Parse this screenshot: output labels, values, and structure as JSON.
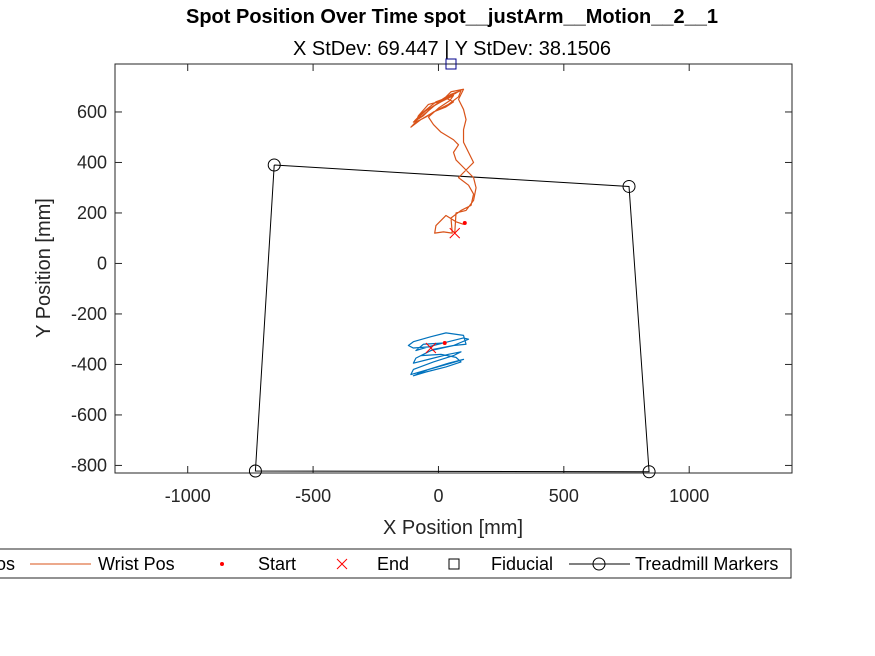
{
  "chart_data": {
    "type": "line",
    "title": "Spot Position Over Time spot__justArm__Motion__2__1",
    "subtitle": "X StDev: 69.447  |  Y StDev: 38.1506",
    "xlabel": "X Position [mm]",
    "ylabel": "Y Position [mm]",
    "xlim": [
      -1290,
      1410
    ],
    "ylim": [
      -830,
      790
    ],
    "xticks": [
      -1000,
      -500,
      0,
      500,
      1000
    ],
    "xtick_labels": [
      "-1000",
      "-500",
      "0",
      "500",
      "1000"
    ],
    "yticks": [
      -800,
      -600,
      -400,
      -200,
      0,
      200,
      400,
      600
    ],
    "ytick_labels": [
      "-800",
      "-600",
      "-400",
      "-200",
      "0",
      "200",
      "400",
      "600"
    ],
    "grid": false,
    "legend_position": "bottom",
    "colors": {
      "spot": "#0072BD",
      "wrist": "#D95319",
      "markers": "#000000",
      "start_end": "#FF0000",
      "fiducial": "#00008B"
    },
    "series": [
      {
        "name": "Spot Pos",
        "legend_text": "os",
        "color": "#0072BD",
        "points": [
          [
            20,
            -315
          ],
          [
            -60,
            -320
          ],
          [
            -90,
            -345
          ],
          [
            -40,
            -330
          ],
          [
            40,
            -310
          ],
          [
            100,
            -295
          ],
          [
            120,
            -300
          ],
          [
            60,
            -325
          ],
          [
            -20,
            -340
          ],
          [
            -90,
            -375
          ],
          [
            -100,
            -395
          ],
          [
            -40,
            -380
          ],
          [
            40,
            -360
          ],
          [
            90,
            -350
          ],
          [
            60,
            -365
          ],
          [
            -20,
            -390
          ],
          [
            -100,
            -420
          ],
          [
            -110,
            -440
          ],
          [
            -40,
            -420
          ],
          [
            50,
            -395
          ],
          [
            100,
            -380
          ],
          [
            40,
            -395
          ],
          [
            -40,
            -420
          ],
          [
            -100,
            -445
          ],
          [
            -50,
            -430
          ],
          [
            30,
            -410
          ],
          [
            90,
            -390
          ],
          [
            70,
            -372
          ],
          [
            10,
            -360
          ],
          [
            -70,
            -365
          ],
          [
            -30,
            -345
          ],
          [
            60,
            -325
          ],
          [
            110,
            -320
          ],
          [
            100,
            -285
          ],
          [
            30,
            -275
          ],
          [
            -30,
            -290
          ],
          [
            -100,
            -310
          ],
          [
            -120,
            -325
          ],
          [
            -100,
            -335
          ],
          [
            -30,
            -330
          ],
          [
            -30,
            -335
          ]
        ]
      },
      {
        "name": "Wrist Pos",
        "color": "#D95319",
        "points": [
          [
            100,
            155
          ],
          [
            70,
            165
          ],
          [
            30,
            190
          ],
          [
            -10,
            150
          ],
          [
            -15,
            120
          ],
          [
            20,
            125
          ],
          [
            55,
            120
          ],
          [
            50,
            180
          ],
          [
            90,
            210
          ],
          [
            130,
            230
          ],
          [
            140,
            275
          ],
          [
            120,
            310
          ],
          [
            80,
            340
          ],
          [
            120,
            380
          ],
          [
            140,
            400
          ],
          [
            120,
            440
          ],
          [
            100,
            480
          ],
          [
            100,
            530
          ],
          [
            110,
            570
          ],
          [
            100,
            610
          ],
          [
            80,
            650
          ],
          [
            100,
            690
          ],
          [
            50,
            680
          ],
          [
            30,
            660
          ],
          [
            0,
            640
          ],
          [
            -40,
            630
          ],
          [
            -80,
            585
          ],
          [
            -90,
            560
          ],
          [
            -50,
            580
          ],
          [
            -20,
            600
          ],
          [
            30,
            620
          ],
          [
            60,
            640
          ],
          [
            30,
            655
          ],
          [
            -10,
            640
          ],
          [
            -60,
            600
          ],
          [
            -100,
            550
          ],
          [
            -110,
            540
          ],
          [
            -70,
            570
          ],
          [
            -10,
            605
          ],
          [
            40,
            630
          ],
          [
            80,
            660
          ],
          [
            90,
            685
          ],
          [
            50,
            670
          ],
          [
            -10,
            630
          ],
          [
            -70,
            580
          ],
          [
            -100,
            560
          ],
          [
            -60,
            585
          ],
          [
            -30,
            615
          ],
          [
            20,
            650
          ],
          [
            70,
            675
          ],
          [
            90,
            686
          ],
          [
            30,
            655
          ],
          [
            -50,
            605
          ],
          [
            -95,
            565
          ],
          [
            -60,
            600
          ],
          [
            10,
            640
          ],
          [
            60,
            665
          ],
          [
            45,
            645
          ],
          [
            0,
            615
          ],
          [
            -40,
            580
          ],
          [
            -20,
            550
          ],
          [
            10,
            520
          ],
          [
            60,
            490
          ],
          [
            80,
            470
          ],
          [
            60,
            440
          ],
          [
            70,
            410
          ],
          [
            100,
            380
          ],
          [
            140,
            340
          ],
          [
            150,
            300
          ],
          [
            140,
            250
          ],
          [
            110,
            210
          ],
          [
            70,
            200
          ],
          [
            65,
            120
          ]
        ]
      },
      {
        "name": "Start",
        "type": "scatter",
        "color": "#FF0000",
        "points": [
          [
            105,
            160
          ],
          [
            25,
            -315
          ]
        ]
      },
      {
        "name": "End",
        "type": "scatter",
        "color": "#FF0000",
        "points": [
          [
            65,
            120
          ],
          [
            -30,
            -335
          ]
        ]
      },
      {
        "name": "Fiducial",
        "type": "scatter",
        "color": "#00008B",
        "points": [
          [
            50,
            790
          ]
        ]
      },
      {
        "name": "Treadmill Markers",
        "type": "polygon",
        "color": "#000000",
        "points": [
          [
            -655,
            390
          ],
          [
            760,
            305
          ],
          [
            840,
            -825
          ],
          [
            -730,
            -822
          ]
        ]
      }
    ]
  },
  "legend": {
    "items": [
      {
        "key": "spot",
        "label": "os"
      },
      {
        "key": "wrist",
        "label": "Wrist Pos"
      },
      {
        "key": "start",
        "label": "Start"
      },
      {
        "key": "end",
        "label": "End"
      },
      {
        "key": "fiducial",
        "label": "Fiducial"
      },
      {
        "key": "markers",
        "label": "Treadmill Markers"
      }
    ]
  }
}
